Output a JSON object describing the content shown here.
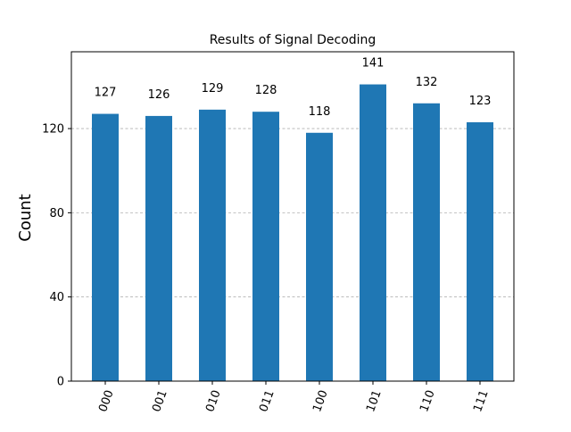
{
  "chart_data": {
    "type": "bar",
    "title": "Results of Signal Decoding",
    "xlabel": "",
    "ylabel": "Count",
    "categories": [
      "000",
      "001",
      "010",
      "011",
      "100",
      "101",
      "110",
      "111"
    ],
    "values": [
      127,
      126,
      129,
      128,
      118,
      141,
      132,
      123
    ],
    "data_labels": [
      "127",
      "126",
      "129",
      "128",
      "118",
      "141",
      "132",
      "123"
    ],
    "yticks": [
      0,
      40,
      80,
      120
    ],
    "ytick_labels": [
      "0",
      "40",
      "80",
      "120"
    ],
    "ylim": [
      0,
      156.5
    ],
    "grid": "horizontal-dashed",
    "bar_color": "#1f77b4",
    "grid_color": "#b0b0b0"
  }
}
